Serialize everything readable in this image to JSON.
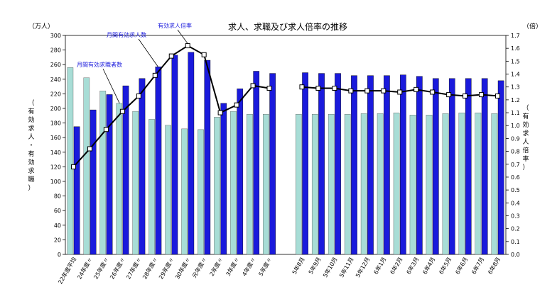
{
  "chart_data": {
    "type": "bar",
    "title": "求人、求職及び求人倍率の推移",
    "left_unit": "（万人）",
    "right_unit": "（倍）",
    "left_axis_label": [
      "（",
      "有",
      "効",
      "求",
      "人",
      "・",
      "有",
      "効",
      "求",
      "職",
      "）"
    ],
    "right_axis_label": [
      "（",
      "有",
      "効",
      "求",
      "人",
      "倍",
      "率",
      "）"
    ],
    "ylim_left": [
      0,
      300
    ],
    "ylim_right": [
      0.0,
      1.7
    ],
    "yticks_left": [
      "0",
      "20",
      "40",
      "60",
      "80",
      "100",
      "120",
      "140",
      "160",
      "180",
      "200",
      "220",
      "240",
      "260",
      "280",
      "300"
    ],
    "yticks_right": [
      "0.0",
      "0.1",
      "0.2",
      "0.3",
      "0.4",
      "0.5",
      "0.6",
      "0.7",
      "0.8",
      "0.9",
      "1.0",
      "1.1",
      "1.2",
      "1.3",
      "1.4",
      "1.5",
      "1.6",
      "1.7"
    ],
    "categories": [
      "22年度平均",
      "24年度〃",
      "25年度〃",
      "26年度〃",
      "27年度〃",
      "28年度〃",
      "29年度〃",
      "30年度〃",
      "元年度〃",
      "2年度〃",
      "3年度〃",
      "4年度〃",
      "5年度〃",
      "",
      "5年8月",
      "5年9月",
      "5年10月",
      "5年11月",
      "5年12月",
      "6年1月",
      "6年2月",
      "6年3月",
      "6年4月",
      "6年5月",
      "6年6月",
      "6年7月",
      "6年8月"
    ],
    "annotations": [
      "月間有効求職者数",
      "月間有効求人数",
      "有効求人倍率"
    ],
    "series": [
      {
        "name": "月間有効求職者数",
        "color": "#a8ddd6",
        "values": [
          256,
          242,
          224,
          207,
          196,
          185,
          177,
          172,
          171,
          188,
          196,
          192,
          192,
          null,
          192,
          192,
          192,
          192,
          193,
          193,
          194,
          191,
          191,
          193,
          194,
          194,
          193
        ]
      },
      {
        "name": "月間有効求人数",
        "color": "#1a1adc",
        "values": [
          175,
          198,
          219,
          231,
          241,
          257,
          273,
          277,
          266,
          207,
          227,
          251,
          248,
          null,
          249,
          248,
          248,
          245,
          245,
          245,
          246,
          244,
          241,
          241,
          241,
          241,
          238
        ]
      },
      {
        "name": "有効求人倍率",
        "color": "#000000",
        "axis": "right",
        "values": [
          0.68,
          0.82,
          0.97,
          1.11,
          1.23,
          1.39,
          1.54,
          1.62,
          1.55,
          1.1,
          1.16,
          1.31,
          1.29,
          null,
          1.3,
          1.29,
          1.29,
          1.27,
          1.27,
          1.27,
          1.26,
          1.28,
          1.26,
          1.24,
          1.23,
          1.24,
          1.23
        ]
      }
    ]
  }
}
